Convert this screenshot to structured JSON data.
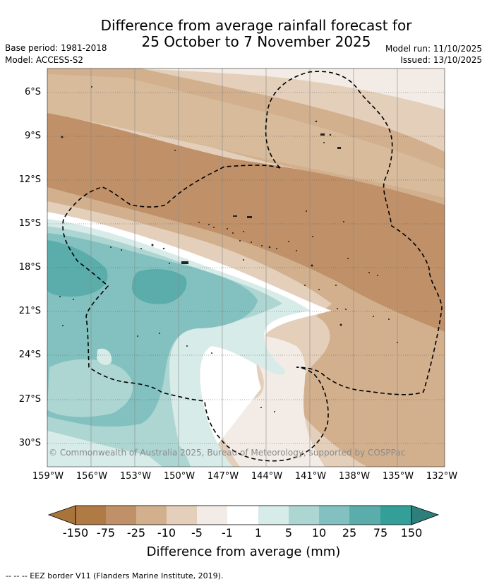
{
  "title_line1": "Difference from average rainfall forecast for",
  "title_line2": "25 October to 7 November 2025",
  "base_period": "Base period: 1981-2018",
  "model": "Model: ACCESS-S2",
  "model_run": "Model run: 11/10/2025",
  "issued": "Issued: 13/10/2025",
  "copyright": "© Commonwealth of Australia 2025, Bureau of Meteorology, supported by COSPPac",
  "lat_labels": [
    "6°S",
    "9°S",
    "12°S",
    "15°S",
    "18°S",
    "21°S",
    "24°S",
    "27°S",
    "30°S"
  ],
  "lon_labels": [
    "159°W",
    "156°W",
    "153°W",
    "150°W",
    "147°W",
    "144°W",
    "141°W",
    "138°W",
    "135°W",
    "132°W"
  ],
  "colorbar": {
    "label": "Difference from average (mm)",
    "ticks": [
      "-150",
      "-75",
      "-25",
      "-10",
      "-5",
      "-1",
      "1",
      "5",
      "10",
      "25",
      "75",
      "150"
    ],
    "colors": [
      "#a8743c",
      "#b07a45",
      "#c09168",
      "#d2b08e",
      "#e4cfbb",
      "#f3ece6",
      "#ffffff",
      "#d7ebe8",
      "#add6d3",
      "#82c1bf",
      "#5aadab",
      "#349f99",
      "#2d7f7b"
    ]
  },
  "footer": "-- -- -- EEZ border V11 (Flanders Marine Institute, 2019)."
}
